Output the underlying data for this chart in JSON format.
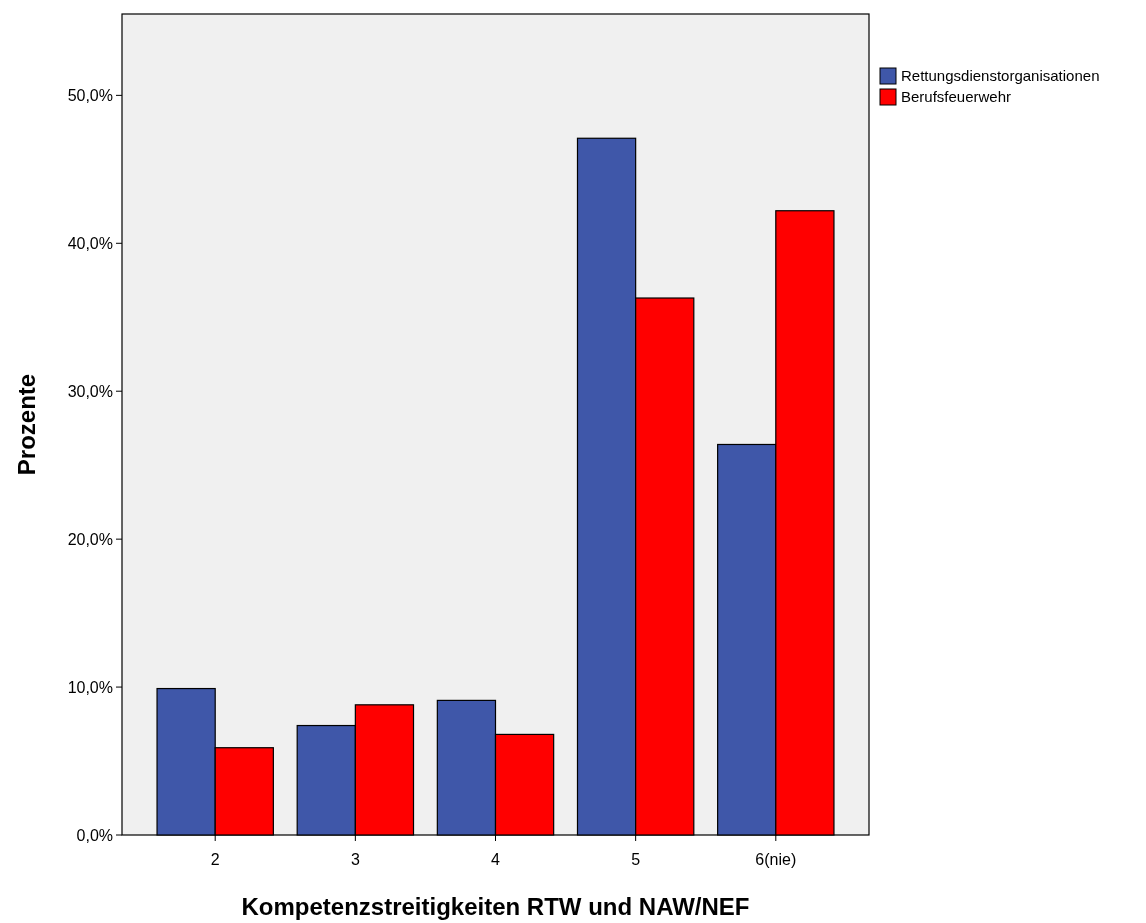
{
  "chart_data": {
    "type": "bar",
    "xlabel": "Kompetenzstreitigkeiten RTW und NAW/NEF",
    "ylabel": "Prozente",
    "categories": [
      "2",
      "3",
      "4",
      "5",
      "6(nie)"
    ],
    "series": [
      {
        "name": "Rettungsdienstorganisationen",
        "color": "#3f57a9",
        "values": [
          9.9,
          7.4,
          9.1,
          47.1,
          26.4
        ]
      },
      {
        "name": "Berufsfeuerwehr",
        "color": "#ff0000",
        "values": [
          5.9,
          8.8,
          6.8,
          36.3,
          42.2
        ]
      }
    ],
    "ylim": [
      0,
      55.5
    ],
    "yticks": [
      {
        "value": 0,
        "label": "0,0%"
      },
      {
        "value": 10,
        "label": "10,0%"
      },
      {
        "value": 20,
        "label": "20,0%"
      },
      {
        "value": 30,
        "label": "30,0%"
      },
      {
        "value": 40,
        "label": "40,0%"
      },
      {
        "value": 50,
        "label": "50,0%"
      }
    ],
    "legend": "top right",
    "grid": false
  }
}
